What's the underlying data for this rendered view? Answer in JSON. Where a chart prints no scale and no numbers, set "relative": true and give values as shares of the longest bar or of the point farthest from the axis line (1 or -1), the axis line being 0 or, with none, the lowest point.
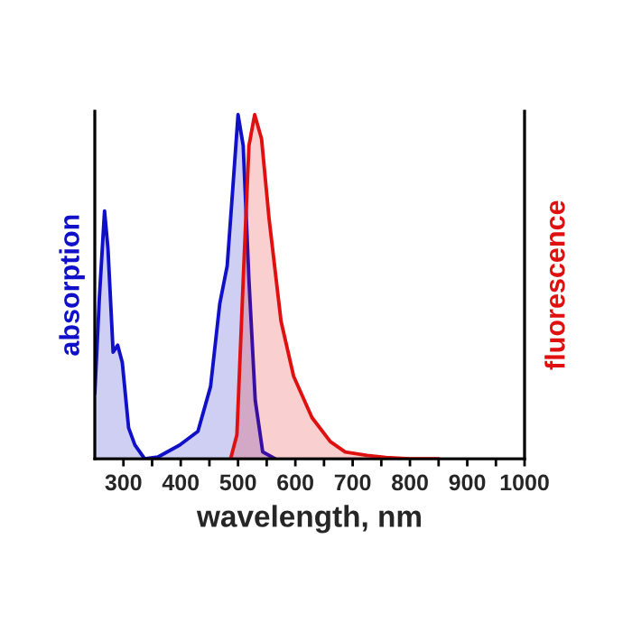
{
  "chart_data": {
    "type": "area",
    "relative": true,
    "xlabel": "wavelength, nm",
    "ylabel": "absorption",
    "y2label": "fluorescence",
    "xlim": [
      250,
      1000
    ],
    "xticks": [
      300,
      {
        "value": 350,
        "label": null
      },
      400,
      {
        "value": 450,
        "label": null
      },
      500,
      {
        "value": 550,
        "label": null
      },
      600,
      {
        "value": 650,
        "label": null
      },
      700,
      {
        "value": 750,
        "label": null
      },
      800,
      {
        "value": 850,
        "label": null
      },
      900,
      {
        "value": 950,
        "label": null
      },
      1000
    ],
    "grid": false,
    "legend": false,
    "series": [
      {
        "color": "#1010c8",
        "axis": "y",
        "x": [
          250,
          258,
          267,
          273,
          282,
          290,
          298,
          309,
          320,
          337,
          360,
          398,
          430,
          452,
          468,
          481,
          491,
          500,
          509,
          519,
          530,
          543,
          565
        ],
        "values": [
          0.19,
          0.47,
          0.72,
          0.61,
          0.31,
          0.33,
          0.28,
          0.09,
          0.04,
          0,
          0.005,
          0.04,
          0.08,
          0.21,
          0.45,
          0.56,
          0.79,
          1,
          0.91,
          0.52,
          0.17,
          0.02,
          0
        ]
      },
      {
        "color": "#e01010",
        "axis": "y2",
        "x": [
          487,
          498,
          509,
          519,
          529,
          541,
          554,
          575,
          597,
          629,
          661,
          687,
          725,
          758,
          800,
          850
        ],
        "values": [
          0,
          0.07,
          0.52,
          0.91,
          1,
          0.93,
          0.7,
          0.4,
          0.24,
          0.12,
          0.05,
          0.02,
          0.01,
          0.004,
          0,
          0
        ]
      }
    ]
  }
}
